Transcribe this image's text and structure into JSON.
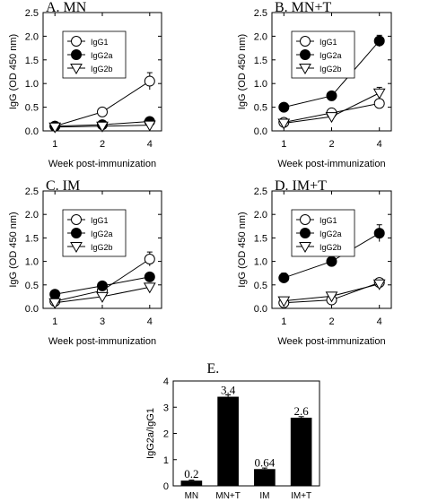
{
  "chart_data": [
    {
      "type": "line",
      "title": "A. MN",
      "xlabel": "Week post-immunization",
      "ylabel": "IgG (OD 450 nm)",
      "ylim": [
        0,
        2.5
      ],
      "yticks": [
        "0.0",
        "0.5",
        "1.0",
        "1.5",
        "2.0",
        "2.5"
      ],
      "x": [
        "1",
        "2",
        "4"
      ],
      "legend_position": "top-left",
      "grid": false,
      "series": [
        {
          "name": "IgG1",
          "marker": "circle-open",
          "values": [
            0.1,
            0.4,
            1.05
          ],
          "errors": [
            0.02,
            0.04,
            0.18
          ]
        },
        {
          "name": "IgG2a",
          "marker": "circle-filled",
          "values": [
            0.1,
            0.13,
            0.2
          ],
          "errors": [
            0.02,
            0.02,
            0.03
          ]
        },
        {
          "name": "IgG2b",
          "marker": "triangle-down-open",
          "values": [
            0.08,
            0.1,
            0.12
          ],
          "errors": [
            0.01,
            0.01,
            0.02
          ]
        }
      ]
    },
    {
      "type": "line",
      "title": "B. MN+T",
      "xlabel": "Week post-immunization",
      "ylabel": "IgG (OD 450 nm)",
      "ylim": [
        0,
        2.5
      ],
      "yticks": [
        "0.0",
        "0.5",
        "1.0",
        "1.5",
        "2.0",
        "2.5"
      ],
      "x": [
        "1",
        "2",
        "4"
      ],
      "legend_position": "top-left",
      "grid": false,
      "series": [
        {
          "name": "IgG1",
          "marker": "circle-open",
          "values": [
            0.18,
            0.38,
            0.58
          ],
          "errors": [
            0.03,
            0.06,
            0.08
          ]
        },
        {
          "name": "IgG2a",
          "marker": "circle-filled",
          "values": [
            0.5,
            0.74,
            1.9
          ],
          "errors": [
            0.04,
            0.05,
            0.12
          ]
        },
        {
          "name": "IgG2b",
          "marker": "triangle-down-open",
          "values": [
            0.16,
            0.3,
            0.8
          ],
          "errors": [
            0.03,
            0.05,
            0.12
          ]
        }
      ]
    },
    {
      "type": "line",
      "title": "C. IM",
      "xlabel": "Week post-immunization",
      "ylabel": "IgG (OD 450 nm)",
      "ylim": [
        0,
        2.5
      ],
      "yticks": [
        "0.0",
        "0.5",
        "1.0",
        "1.5",
        "2.0",
        "2.5"
      ],
      "x": [
        "1",
        "3",
        "4"
      ],
      "legend_position": "top-left",
      "grid": false,
      "series": [
        {
          "name": "IgG1",
          "marker": "circle-open",
          "values": [
            0.15,
            0.38,
            1.05
          ],
          "errors": [
            0.03,
            0.05,
            0.15
          ]
        },
        {
          "name": "IgG2a",
          "marker": "circle-filled",
          "values": [
            0.3,
            0.48,
            0.67
          ],
          "errors": [
            0.03,
            0.05,
            0.06
          ]
        },
        {
          "name": "IgG2b",
          "marker": "triangle-down-open",
          "values": [
            0.12,
            0.25,
            0.45
          ],
          "errors": [
            0.02,
            0.03,
            0.05
          ]
        }
      ]
    },
    {
      "type": "line",
      "title": "D. IM+T",
      "xlabel": "Week post-immunization",
      "ylabel": "IgG (OD 450 nm)",
      "ylim": [
        0,
        2.5
      ],
      "yticks": [
        "0.0",
        "0.5",
        "1.0",
        "1.5",
        "2.0",
        "2.5"
      ],
      "x": [
        "1",
        "2",
        "4"
      ],
      "legend_position": "top-left",
      "grid": false,
      "series": [
        {
          "name": "IgG1",
          "marker": "circle-open",
          "values": [
            0.12,
            0.18,
            0.55
          ],
          "errors": [
            0.02,
            0.03,
            0.05
          ]
        },
        {
          "name": "IgG2a",
          "marker": "circle-filled",
          "values": [
            0.65,
            1.0,
            1.6
          ],
          "errors": [
            0.1,
            0.05,
            0.18
          ]
        },
        {
          "name": "IgG2b",
          "marker": "triangle-down-open",
          "values": [
            0.16,
            0.26,
            0.52
          ],
          "errors": [
            0.02,
            0.03,
            0.05
          ]
        }
      ]
    },
    {
      "type": "bar",
      "title": "E.",
      "xlabel": "",
      "ylabel": "IgG2a/IgG1",
      "ylim": [
        0,
        4
      ],
      "yticks": [
        "0",
        "1",
        "2",
        "3",
        "4"
      ],
      "categories": [
        "MN",
        "MN+T",
        "IM",
        "IM+T"
      ],
      "values": [
        0.2,
        3.4,
        0.64,
        2.6
      ],
      "errors": [
        0.02,
        0.07,
        0.04,
        0.04
      ],
      "data_labels": [
        "0.2",
        "3.4",
        "0.64",
        "2.6"
      ],
      "grid": false
    }
  ]
}
